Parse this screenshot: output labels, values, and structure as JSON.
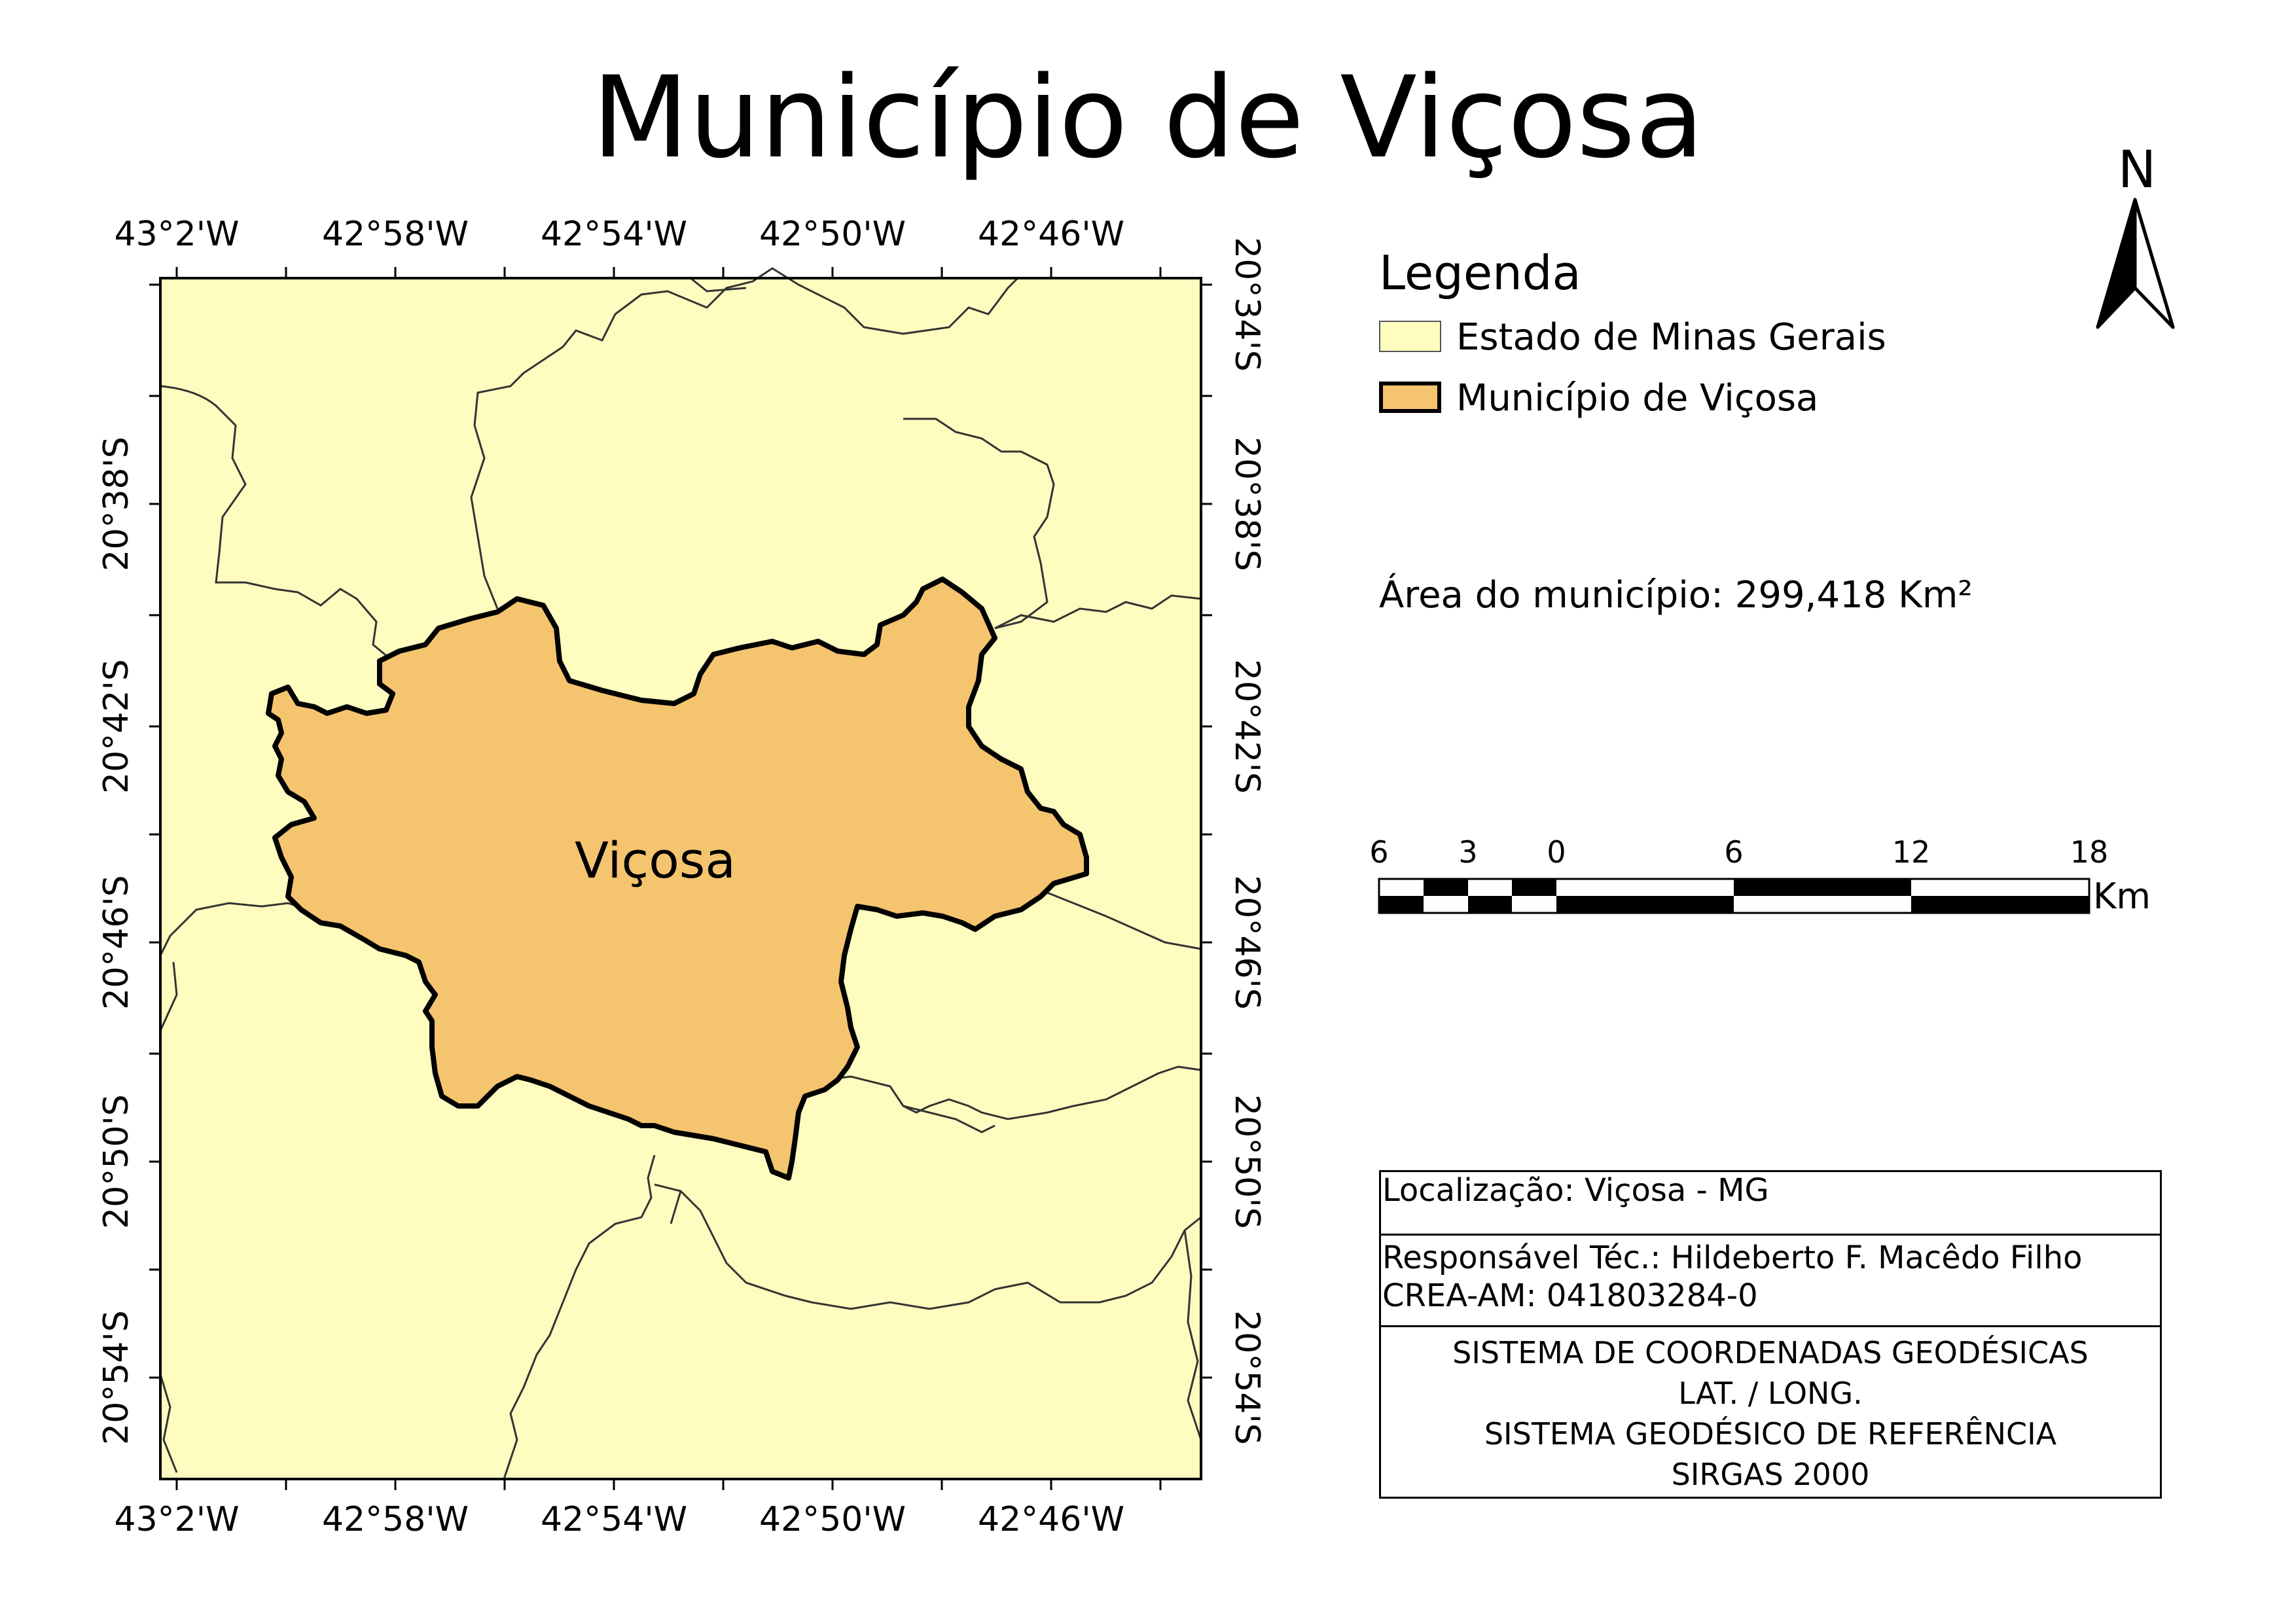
{
  "title": "Município de Viçosa",
  "map": {
    "municipality_label": "Viçosa",
    "colors": {
      "state_fill": "#FFFCC0",
      "municipality_fill": "#F5C46F",
      "boundary_line": "#333333",
      "municipality_outline": "#000000"
    },
    "longitude_labels": [
      "43°2'W",
      "42°58'W",
      "42°54'W",
      "42°50'W",
      "42°46'W"
    ],
    "latitude_labels_left": [
      "20°38'S",
      "20°42'S",
      "20°46'S",
      "20°50'S",
      "20°54'S"
    ],
    "latitude_labels_right": [
      "20°34'S",
      "20°38'S",
      "20°42'S",
      "20°46'S",
      "20°50'S",
      "20°54'S"
    ]
  },
  "north_arrow": {
    "letter": "N",
    "icon": "north-arrow-icon"
  },
  "legend": {
    "title": "Legenda",
    "items": [
      {
        "label": "Estado de Minas Gerais",
        "color": "#FFFCC0",
        "outline": "thin"
      },
      {
        "label": "Município de Viçosa",
        "color": "#F5C46F",
        "outline": "thick"
      }
    ]
  },
  "area_text": "Área do município: 299,418 Km²",
  "scale_bar": {
    "labels": [
      "6",
      "3",
      "0",
      "6",
      "12",
      "18"
    ],
    "unit": "Km"
  },
  "info": {
    "location": "Localização: Viçosa - MG",
    "responsible": "Responsável Téc.: Hildeberto F. Macêdo Filho",
    "crea": "CREA-AM: 041803284-0",
    "system_lines": [
      "SISTEMA DE COORDENADAS GEODÉSICAS",
      "LAT. / LONG.",
      "SISTEMA GEODÉSICO DE REFERÊNCIA",
      "SIRGAS 2000"
    ]
  }
}
